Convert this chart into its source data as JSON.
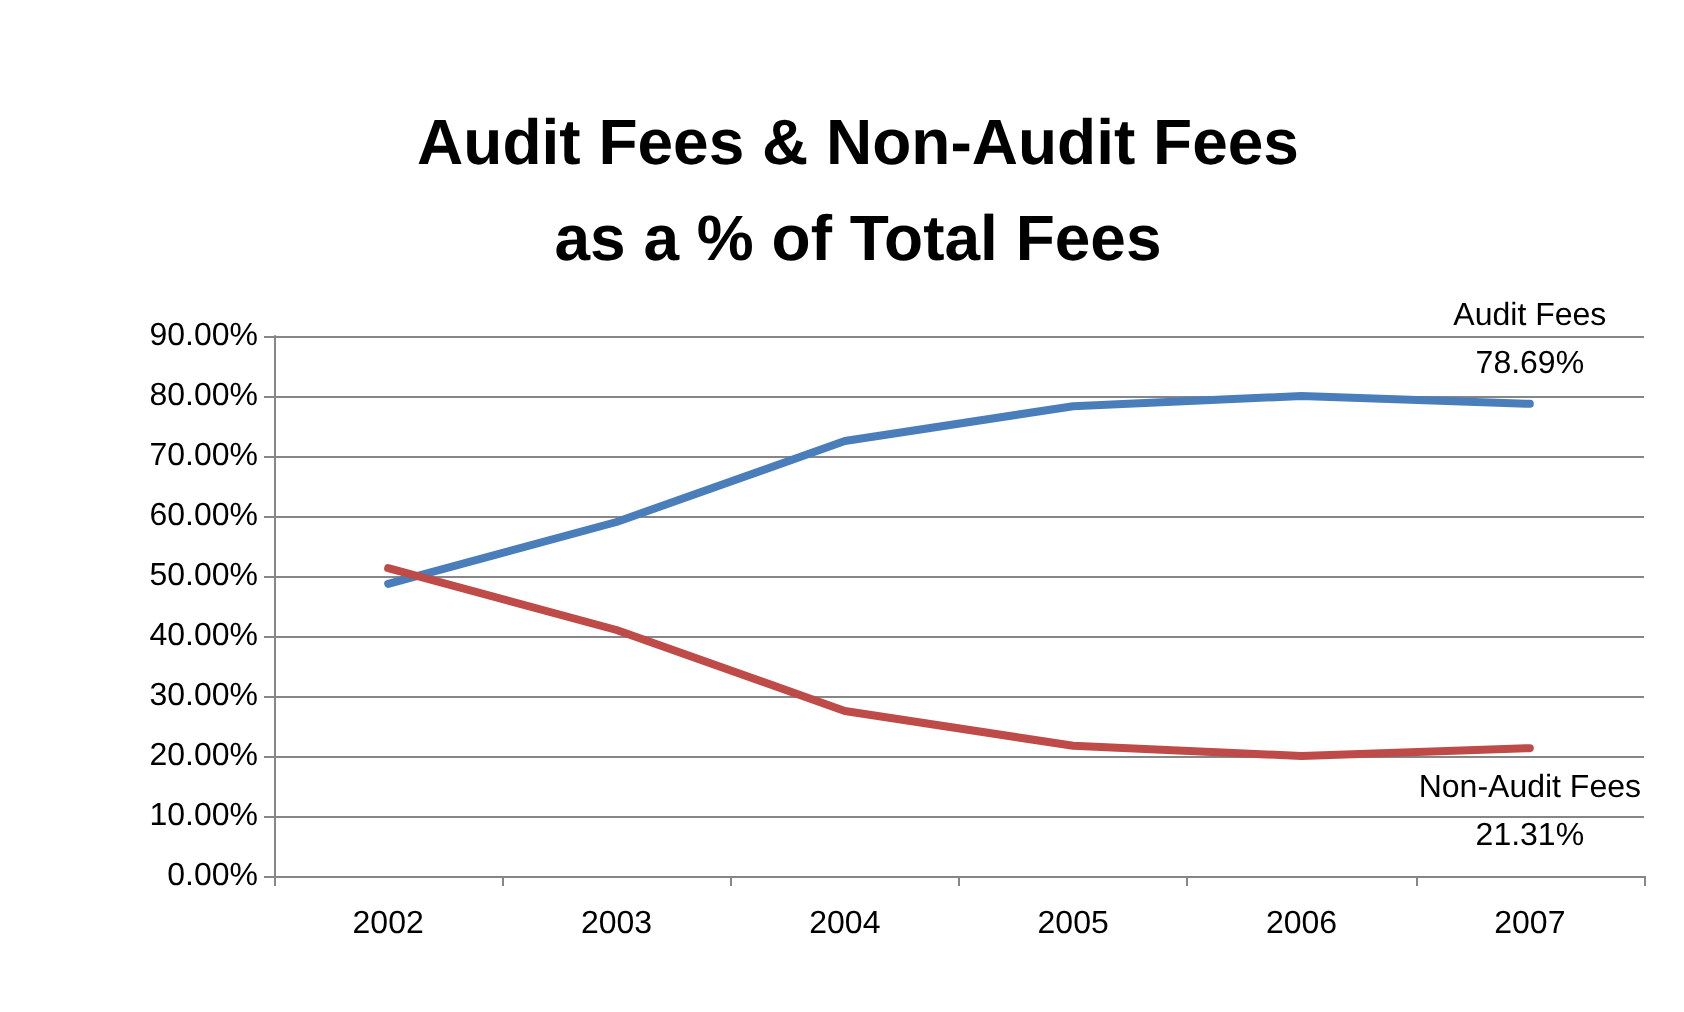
{
  "chart_data": {
    "type": "line",
    "title": "Audit Fees & Non-Audit Fees\nas a % of Total Fees",
    "categories": [
      "2002",
      "2003",
      "2004",
      "2005",
      "2006",
      "2007"
    ],
    "series": [
      {
        "name": "Audit Fees",
        "color": "#4a7ebb",
        "values": [
          48.7,
          59,
          72.5,
          78.3,
          80,
          78.69
        ],
        "value_labels": [
          null,
          null,
          null,
          null,
          null,
          "78.69%"
        ]
      },
      {
        "name": "Non-Audit Fees",
        "color": "#be4b48",
        "values": [
          51.3,
          41,
          27.5,
          21.7,
          20,
          21.31
        ],
        "value_labels": [
          null,
          null,
          null,
          null,
          null,
          "21.31%"
        ]
      }
    ],
    "ylim": [
      0,
      90
    ],
    "yticks": [
      {
        "value": 0,
        "label": "0.00%"
      },
      {
        "value": 10,
        "label": "10.00%"
      },
      {
        "value": 20,
        "label": "20.00%"
      },
      {
        "value": 30,
        "label": "30.00%"
      },
      {
        "value": 40,
        "label": "40.00%"
      },
      {
        "value": 50,
        "label": "50.00%"
      },
      {
        "value": 60,
        "label": "60.00%"
      },
      {
        "value": 70,
        "label": "70.00%"
      },
      {
        "value": 80,
        "label": "80.00%"
      },
      {
        "value": 90,
        "label": "90.00%"
      }
    ],
    "grid": "y",
    "legend": false,
    "marker": "none",
    "line_style": "solid"
  }
}
